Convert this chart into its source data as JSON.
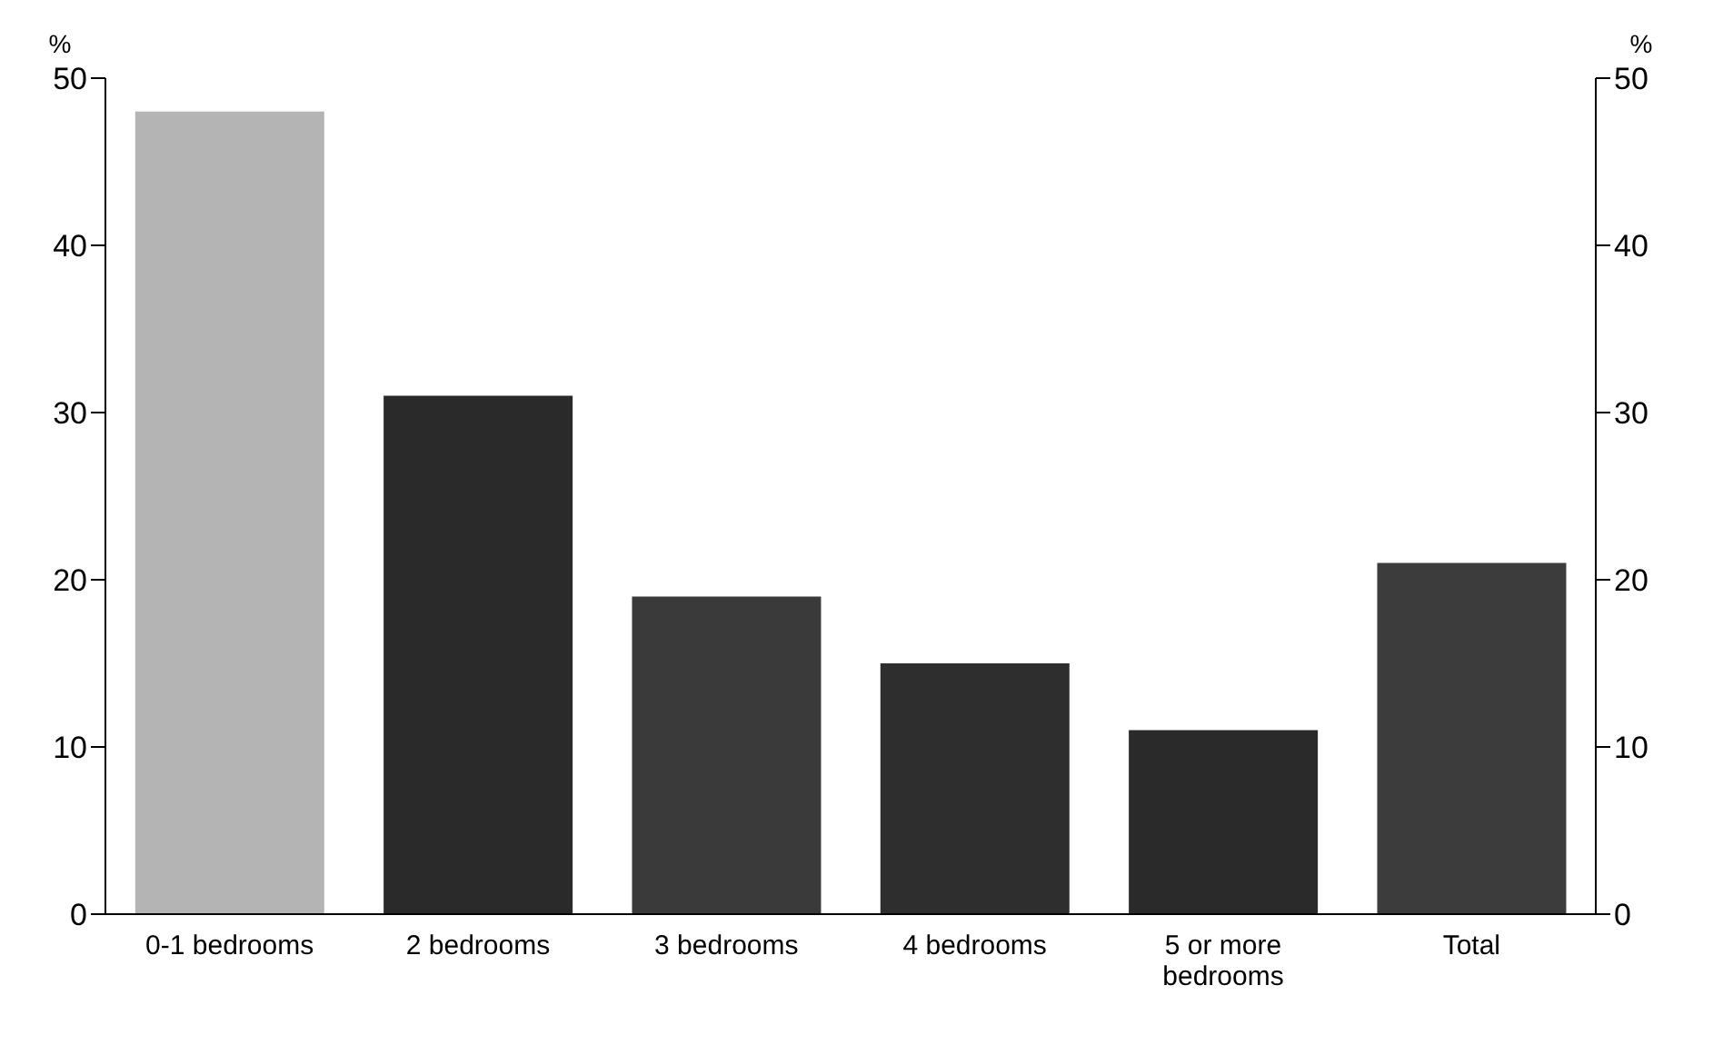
{
  "chart_data": {
    "type": "bar",
    "ylabel": "%",
    "y2label": "%",
    "categories": [
      "0-1 bedrooms",
      "2 bedrooms",
      "3 bedrooms",
      "4 bedrooms",
      "5 or more bedrooms",
      "Total"
    ],
    "values": [
      48,
      31,
      19,
      15,
      11,
      21
    ],
    "colors": [
      "#b4b4b4",
      "#2a2a2a",
      "#3a3a3a",
      "#2e2e2e",
      "#2a2a2a",
      "#3c3c3c"
    ],
    "ylim": [
      0,
      50
    ],
    "yticks": [
      0,
      10,
      20,
      30,
      40,
      50
    ],
    "y2lim": [
      0,
      50
    ],
    "y2ticks": [
      0,
      10,
      20,
      30,
      40,
      50
    ]
  }
}
